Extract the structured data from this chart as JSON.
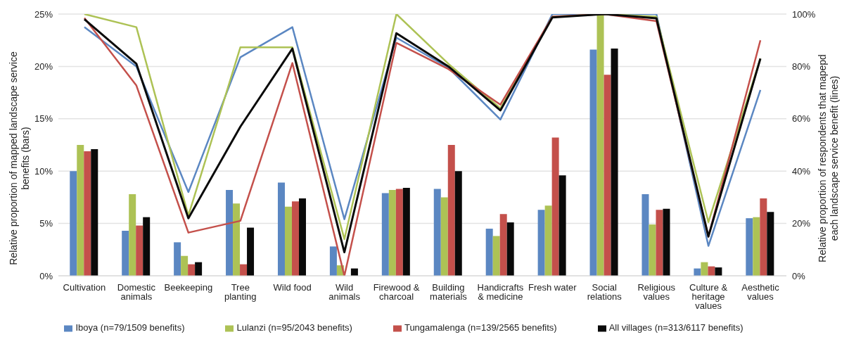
{
  "chart_data": {
    "type": "bar",
    "ylabel": "Relative proportion of mapped landscape service benefits (bars)",
    "y2label": "Relative proportion of respondents that mapepd each landscape service  benefit (lines)",
    "categories": [
      "Cultivation",
      "Domestic animals",
      "Beekeeping",
      "Tree planting",
      "Wild food",
      "Wild animals",
      "Firewood & charcoal",
      "Building materials",
      "Handicrafts & medicine",
      "Fresh water",
      "Social relations",
      "Religious values",
      "Culture & heritage values",
      "Aesthetic values"
    ],
    "series": [
      {
        "name": "Iboya (n=79/1509 benefits)",
        "color": "#5b87c2",
        "values": [
          10.0,
          4.3,
          3.2,
          8.2,
          8.9,
          2.8,
          7.9,
          8.3,
          4.5,
          6.3,
          21.6,
          7.8,
          0.7,
          5.5
        ]
      },
      {
        "name": "Lulanzi (n=95/2043 benefits)",
        "color": "#adc255",
        "values": [
          12.5,
          7.8,
          1.9,
          6.9,
          6.6,
          1.0,
          8.2,
          7.5,
          3.8,
          6.7,
          25.0,
          4.9,
          1.3,
          5.6
        ]
      },
      {
        "name": "Tungamalenga (n=139/2565 benefits)",
        "color": "#c4504b",
        "values": [
          11.9,
          4.8,
          1.1,
          1.1,
          7.1,
          0,
          8.3,
          12.5,
          5.9,
          13.2,
          19.2,
          6.3,
          0.9,
          7.4
        ]
      },
      {
        "name": "All villages (n=313/6117 benefits)",
        "color": "#0a0a0a",
        "values": [
          12.1,
          5.6,
          1.3,
          4.6,
          7.4,
          0.7,
          8.4,
          10.0,
          5.1,
          9.6,
          21.7,
          6.4,
          0.8,
          6.1
        ]
      },
      {
        "type": "line",
        "axis": "y2",
        "color": "#5b87c2",
        "values": [
          95,
          80,
          32,
          83.5,
          95,
          21.6,
          91,
          79.5,
          59.7,
          100,
          100,
          100,
          11.4,
          71
        ]
      },
      {
        "type": "line",
        "axis": "y2",
        "color": "#adc255",
        "values": [
          100,
          95,
          23,
          87.3,
          87.3,
          14,
          100,
          81,
          64,
          99,
          100,
          99,
          20.5,
          83
        ]
      },
      {
        "type": "line",
        "axis": "y2",
        "color": "#c4504b",
        "values": [
          98.5,
          72.7,
          16.5,
          21,
          81.3,
          0,
          89,
          79,
          65.4,
          99,
          100,
          97.3,
          15,
          90
        ]
      },
      {
        "type": "line",
        "axis": "y2",
        "color": "#0a0a0a",
        "values": [
          98,
          81,
          22,
          57,
          86.8,
          9,
          92.7,
          80,
          63.2,
          98.7,
          100,
          98.4,
          15,
          83
        ]
      }
    ],
    "ylim": [
      0,
      25
    ],
    "yticks": [
      {
        "value": 0,
        "label": "0%"
      },
      {
        "value": 5,
        "label": "5%"
      },
      {
        "value": 10,
        "label": "10%"
      },
      {
        "value": 15,
        "label": "15%"
      },
      {
        "value": 20,
        "label": "20%"
      },
      {
        "value": 25,
        "label": "25%"
      }
    ],
    "y2lim": [
      0,
      100
    ],
    "y2ticks": [
      {
        "value": 0,
        "label": "0%"
      },
      {
        "value": 20,
        "label": "20%"
      },
      {
        "value": 40,
        "label": "40%"
      },
      {
        "value": 60,
        "label": "60%"
      },
      {
        "value": 80,
        "label": "80%"
      },
      {
        "value": 100,
        "label": "100%"
      }
    ],
    "grid": "y",
    "legend": "bottom"
  }
}
